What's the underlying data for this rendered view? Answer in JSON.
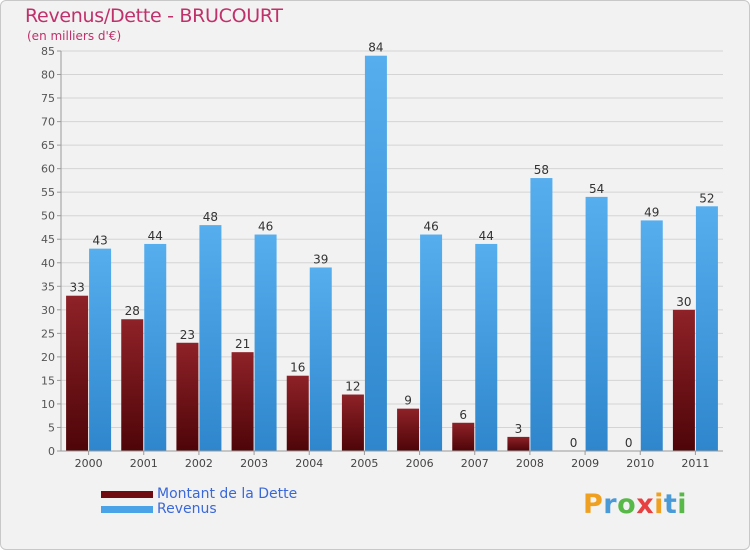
{
  "chart_data": {
    "type": "bar",
    "title": "Revenus/Dette - BRUCOURT",
    "subtitle": "(en milliers d'€)",
    "categories": [
      "2000",
      "2001",
      "2002",
      "2003",
      "2004",
      "2005",
      "2006",
      "2007",
      "2008",
      "2009",
      "2010",
      "2011"
    ],
    "series": [
      {
        "name": "Montant de la Dette",
        "color": "#7a0f15",
        "values": [
          33,
          28,
          23,
          21,
          16,
          12,
          9,
          6,
          3,
          0,
          0,
          30
        ]
      },
      {
        "name": "Revenus",
        "color": "#4aa3e6",
        "values": [
          43,
          44,
          48,
          46,
          39,
          84,
          46,
          44,
          58,
          54,
          49,
          52
        ]
      }
    ],
    "ylim": [
      0,
      85
    ],
    "yticks": [
      0,
      5,
      10,
      15,
      20,
      25,
      30,
      35,
      40,
      45,
      50,
      55,
      60,
      65,
      70,
      75,
      80,
      85
    ],
    "xlabel": "",
    "ylabel": "",
    "grid": true,
    "legend_position": "bottom-left"
  },
  "brand": {
    "letters": [
      "P",
      "r",
      "o",
      "x",
      "i",
      "t",
      "i"
    ],
    "colors": [
      "#f0a020",
      "#4a9ad8",
      "#58b848",
      "#e84040",
      "#f0a020",
      "#4a9ad8",
      "#58b848"
    ]
  }
}
